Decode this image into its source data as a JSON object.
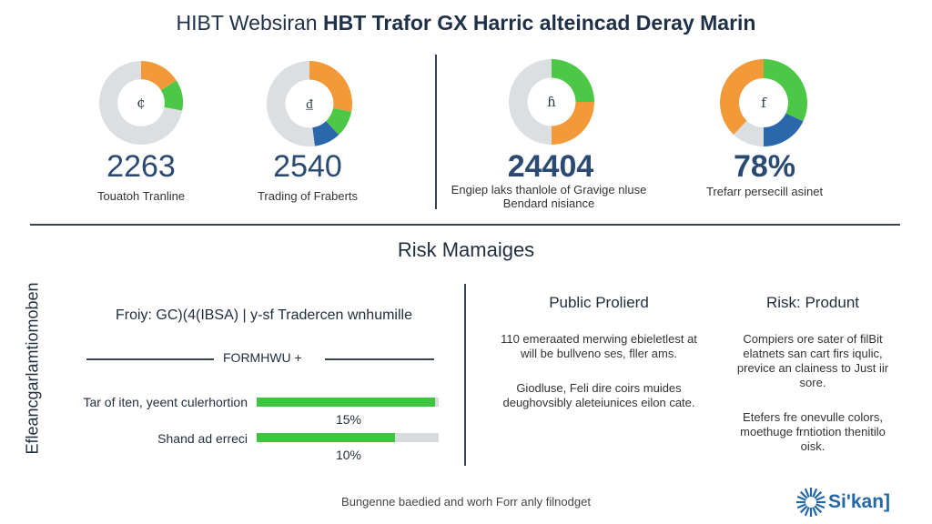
{
  "header": {
    "title_part1": "HIBT Websiran ",
    "title_part2": "HBT Trafor GX Harric alteincad Deray Marin"
  },
  "kpis": [
    {
      "value": "2263",
      "label": "Touatoh Tranline",
      "icon": "¢",
      "slices": [
        {
          "pct": 0.16,
          "color": "#f29a3a"
        },
        {
          "pct": 0.12,
          "color": "#4cc746"
        },
        {
          "pct": 0.72,
          "color": "#dcdfe2"
        }
      ]
    },
    {
      "value": "2540",
      "label": "Trading of Fraberts",
      "icon": "₫",
      "slices": [
        {
          "pct": 0.28,
          "color": "#f29a3a"
        },
        {
          "pct": 0.1,
          "color": "#4cc746"
        },
        {
          "pct": 0.1,
          "color": "#2a67ab"
        },
        {
          "pct": 0.52,
          "color": "#dcdfe2"
        }
      ]
    },
    {
      "value": "24404",
      "label": "Engiep laks thanlole of Gravige nluse Bendard nisiance",
      "icon": "ɦ",
      "slices": [
        {
          "pct": 0.25,
          "color": "#4cc746"
        },
        {
          "pct": 0.25,
          "color": "#f29a3a"
        },
        {
          "pct": 0.5,
          "color": "#dcdfe2"
        }
      ]
    },
    {
      "value": "78%",
      "label": "Trefarr persecill asinet",
      "icon": "f",
      "slices": [
        {
          "pct": 0.32,
          "color": "#4cc746"
        },
        {
          "pct": 0.18,
          "color": "#2a67ab"
        },
        {
          "pct": 0.12,
          "color": "#dcdfe2"
        },
        {
          "pct": 0.38,
          "color": "#f29a3a"
        }
      ]
    }
  ],
  "section": {
    "title": "Risk Mamaiges",
    "vertical_label": "Efleancgarlamtiomoben"
  },
  "left_panel": {
    "heading": "Froiy: GC)(4(IBSA)  |  y-sf Tradercen wnhumille",
    "rule_label": "FORMHWU +",
    "bars": [
      {
        "label": "Tar of iten, yeent culerhortion",
        "value": 0.98,
        "pct_label": "15%"
      },
      {
        "label": "Shand ad erreci",
        "value": 0.76,
        "pct_label": "10%"
      }
    ]
  },
  "columns": [
    {
      "heading": "Public Prolierd",
      "p1": "110 emeraated merwing ebieletlest at will be bullveno ses, fller ams.",
      "p2": "Giodluse, Feli dire coirs muides deughovsibly aleteiunices eilon cate."
    },
    {
      "heading": "Risk: Produnt",
      "p1": "Compiers ore sater of filBit elatnets san cart firs iqulic, previce an clainess to Just iir sore.",
      "p2": "Etefers fre onevulle colors, moethuge frntiotion thenitilo oisk."
    }
  ],
  "footer": {
    "text": "Bungenne baedied and worh Forr anly filnodget"
  },
  "logo": {
    "text": "Si'kan]",
    "color": "#2467a8"
  }
}
